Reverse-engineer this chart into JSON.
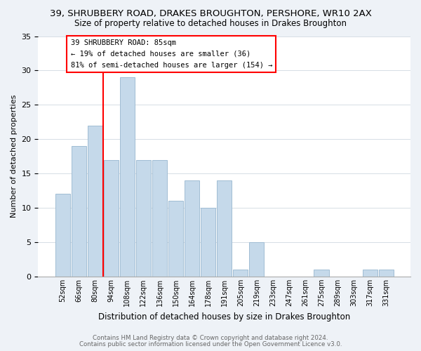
{
  "title": "39, SHRUBBERY ROAD, DRAKES BROUGHTON, PERSHORE, WR10 2AX",
  "subtitle": "Size of property relative to detached houses in Drakes Broughton",
  "xlabel": "Distribution of detached houses by size in Drakes Broughton",
  "ylabel": "Number of detached properties",
  "bar_color": "#c5d9ea",
  "bar_edge_color": "#a0bdd4",
  "bin_labels": [
    "52sqm",
    "66sqm",
    "80sqm",
    "94sqm",
    "108sqm",
    "122sqm",
    "136sqm",
    "150sqm",
    "164sqm",
    "178sqm",
    "191sqm",
    "205sqm",
    "219sqm",
    "233sqm",
    "247sqm",
    "261sqm",
    "275sqm",
    "289sqm",
    "303sqm",
    "317sqm",
    "331sqm"
  ],
  "bar_heights": [
    12,
    19,
    22,
    17,
    29,
    17,
    17,
    11,
    14,
    10,
    14,
    1,
    5,
    0,
    0,
    0,
    1,
    0,
    0,
    1,
    1
  ],
  "ylim": [
    0,
    35
  ],
  "yticks": [
    0,
    5,
    10,
    15,
    20,
    25,
    30,
    35
  ],
  "property_line_label": "39 SHRUBBERY ROAD: 85sqm",
  "annotation_line1": "← 19% of detached houses are smaller (36)",
  "annotation_line2": "81% of semi-detached houses are larger (154) →",
  "footer1": "Contains HM Land Registry data © Crown copyright and database right 2024.",
  "footer2": "Contains public sector information licensed under the Open Government Licence v3.0.",
  "background_color": "#eef2f7",
  "plot_bg_color": "#ffffff"
}
